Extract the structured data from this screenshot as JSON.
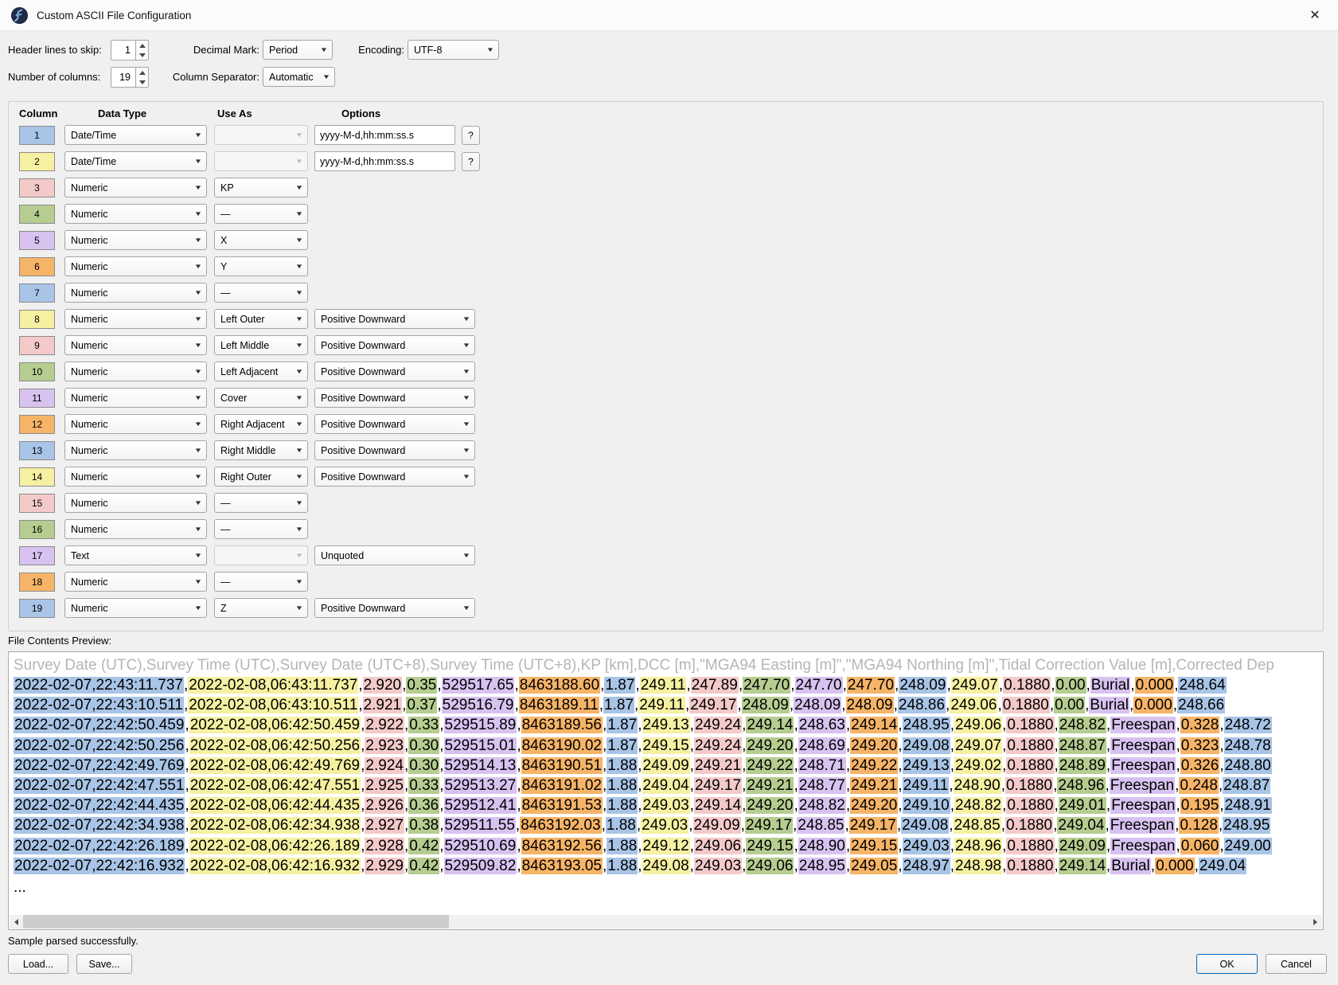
{
  "window": {
    "title": "Custom ASCII File Configuration",
    "close_glyph": "✕"
  },
  "palette": [
    "#a8c4e6",
    "#f6f0a2",
    "#f3cac9",
    "#b5cd90",
    "#d8c2f0",
    "#f6b468"
  ],
  "settings": {
    "header_lines_label": "Header lines to skip:",
    "header_lines_value": "1",
    "num_columns_label": "Number of columns:",
    "num_columns_value": "19",
    "decimal_mark_label": "Decimal Mark:",
    "decimal_mark_value": "Period",
    "column_separator_label": "Column Separator:",
    "column_separator_value": "Automatic",
    "encoding_label": "Encoding:",
    "encoding_value": "UTF-8"
  },
  "columns_table": {
    "headers": {
      "column": "Column",
      "data_type": "Data Type",
      "use_as": "Use As",
      "options": "Options"
    },
    "help_button_label": "?",
    "rows": [
      {
        "num": "1",
        "data_type": "Date/Time",
        "use_as": "",
        "use_as_disabled": true,
        "option_kind": "input",
        "option_value": "yyyy-M-d,hh:mm:ss.s"
      },
      {
        "num": "2",
        "data_type": "Date/Time",
        "use_as": "",
        "use_as_disabled": true,
        "option_kind": "input",
        "option_value": "yyyy-M-d,hh:mm:ss.s"
      },
      {
        "num": "3",
        "data_type": "Numeric",
        "use_as": "KP",
        "use_as_disabled": false,
        "option_kind": "none",
        "option_value": ""
      },
      {
        "num": "4",
        "data_type": "Numeric",
        "use_as": "—",
        "use_as_disabled": false,
        "option_kind": "none",
        "option_value": ""
      },
      {
        "num": "5",
        "data_type": "Numeric",
        "use_as": "X",
        "use_as_disabled": false,
        "option_kind": "none",
        "option_value": ""
      },
      {
        "num": "6",
        "data_type": "Numeric",
        "use_as": "Y",
        "use_as_disabled": false,
        "option_kind": "none",
        "option_value": ""
      },
      {
        "num": "7",
        "data_type": "Numeric",
        "use_as": "—",
        "use_as_disabled": false,
        "option_kind": "none",
        "option_value": ""
      },
      {
        "num": "8",
        "data_type": "Numeric",
        "use_as": "Left Outer",
        "use_as_disabled": false,
        "option_kind": "select",
        "option_value": "Positive Downward"
      },
      {
        "num": "9",
        "data_type": "Numeric",
        "use_as": "Left Middle",
        "use_as_disabled": false,
        "option_kind": "select",
        "option_value": "Positive Downward"
      },
      {
        "num": "10",
        "data_type": "Numeric",
        "use_as": "Left Adjacent",
        "use_as_disabled": false,
        "option_kind": "select",
        "option_value": "Positive Downward"
      },
      {
        "num": "11",
        "data_type": "Numeric",
        "use_as": "Cover",
        "use_as_disabled": false,
        "option_kind": "select",
        "option_value": "Positive Downward"
      },
      {
        "num": "12",
        "data_type": "Numeric",
        "use_as": "Right Adjacent",
        "use_as_disabled": false,
        "option_kind": "select",
        "option_value": "Positive Downward"
      },
      {
        "num": "13",
        "data_type": "Numeric",
        "use_as": "Right Middle",
        "use_as_disabled": false,
        "option_kind": "select",
        "option_value": "Positive Downward"
      },
      {
        "num": "14",
        "data_type": "Numeric",
        "use_as": "Right Outer",
        "use_as_disabled": false,
        "option_kind": "select",
        "option_value": "Positive Downward"
      },
      {
        "num": "15",
        "data_type": "Numeric",
        "use_as": "—",
        "use_as_disabled": false,
        "option_kind": "none",
        "option_value": ""
      },
      {
        "num": "16",
        "data_type": "Numeric",
        "use_as": "—",
        "use_as_disabled": false,
        "option_kind": "none",
        "option_value": ""
      },
      {
        "num": "17",
        "data_type": "Text",
        "use_as": "",
        "use_as_disabled": true,
        "option_kind": "select",
        "option_value": "Unquoted"
      },
      {
        "num": "18",
        "data_type": "Numeric",
        "use_as": "—",
        "use_as_disabled": false,
        "option_kind": "none",
        "option_value": ""
      },
      {
        "num": "19",
        "data_type": "Numeric",
        "use_as": "Z",
        "use_as_disabled": false,
        "option_kind": "select",
        "option_value": "Positive Downward"
      }
    ]
  },
  "preview": {
    "label": "File Contents Preview:",
    "header_line": "Survey Date (UTC),Survey Time (UTC),Survey Date (UTC+8),Survey Time (UTC+8),KP [km],DCC [m],\"MGA94 Easting [m]\",\"MGA94 Northing [m]\",Tidal Correction Value [m],Corrected Dep",
    "ellipsis": "...",
    "rows": [
      [
        "2022-02-07,22:43:11.737",
        "2022-02-08,06:43:11.737",
        "2.920",
        "0.35",
        "529517.65",
        "8463188.60",
        "1.87",
        "249.11",
        "247.89",
        "247.70",
        "247.70",
        "247.70",
        "248.09",
        "249.07",
        "0.1880",
        "0.00",
        "Burial",
        "0.000",
        "248.64"
      ],
      [
        "2022-02-07,22:43:10.511",
        "2022-02-08,06:43:10.511",
        "2.921",
        "0.37",
        "529516.79",
        "8463189.11",
        "1.87",
        "249.11",
        "249.17",
        "248.09",
        "248.09",
        "248.09",
        "248.86",
        "249.06",
        "0.1880",
        "0.00",
        "Burial",
        "0.000",
        "248.66"
      ],
      [
        "2022-02-07,22:42:50.459",
        "2022-02-08,06:42:50.459",
        "2.922",
        "0.33",
        "529515.89",
        "8463189.56",
        "1.87",
        "249.13",
        "249.24",
        "249.14",
        "248.63",
        "249.14",
        "248.95",
        "249.06",
        "0.1880",
        "248.82",
        "Freespan",
        "0.328",
        "248.72"
      ],
      [
        "2022-02-07,22:42:50.256",
        "2022-02-08,06:42:50.256",
        "2.923",
        "0.30",
        "529515.01",
        "8463190.02",
        "1.87",
        "249.15",
        "249.24",
        "249.20",
        "248.69",
        "249.20",
        "249.08",
        "249.07",
        "0.1880",
        "248.87",
        "Freespan",
        "0.323",
        "248.78"
      ],
      [
        "2022-02-07,22:42:49.769",
        "2022-02-08,06:42:49.769",
        "2.924",
        "0.30",
        "529514.13",
        "8463190.51",
        "1.88",
        "249.09",
        "249.21",
        "249.22",
        "248.71",
        "249.22",
        "249.13",
        "249.02",
        "0.1880",
        "248.89",
        "Freespan",
        "0.326",
        "248.80"
      ],
      [
        "2022-02-07,22:42:47.551",
        "2022-02-08,06:42:47.551",
        "2.925",
        "0.33",
        "529513.27",
        "8463191.02",
        "1.88",
        "249.04",
        "249.17",
        "249.21",
        "248.77",
        "249.21",
        "249.11",
        "248.90",
        "0.1880",
        "248.96",
        "Freespan",
        "0.248",
        "248.87"
      ],
      [
        "2022-02-07,22:42:44.435",
        "2022-02-08,06:42:44.435",
        "2.926",
        "0.36",
        "529512.41",
        "8463191.53",
        "1.88",
        "249.03",
        "249.14",
        "249.20",
        "248.82",
        "249.20",
        "249.10",
        "248.82",
        "0.1880",
        "249.01",
        "Freespan",
        "0.195",
        "248.91"
      ],
      [
        "2022-02-07,22:42:34.938",
        "2022-02-08,06:42:34.938",
        "2.927",
        "0.38",
        "529511.55",
        "8463192.03",
        "1.88",
        "249.03",
        "249.09",
        "249.17",
        "248.85",
        "249.17",
        "249.08",
        "248.85",
        "0.1880",
        "249.04",
        "Freespan",
        "0.128",
        "248.95"
      ],
      [
        "2022-02-07,22:42:26.189",
        "2022-02-08,06:42:26.189",
        "2.928",
        "0.42",
        "529510.69",
        "8463192.56",
        "1.88",
        "249.12",
        "249.06",
        "249.15",
        "248.90",
        "249.15",
        "249.03",
        "248.96",
        "0.1880",
        "249.09",
        "Freespan",
        "0.060",
        "249.00"
      ],
      [
        "2022-02-07,22:42:16.932",
        "2022-02-08,06:42:16.932",
        "2.929",
        "0.42",
        "529509.82",
        "8463193.05",
        "1.88",
        "249.08",
        "249.03",
        "249.06",
        "248.95",
        "249.05",
        "248.97",
        "248.98",
        "0.1880",
        "249.14",
        "Burial",
        "0.000",
        "249.04"
      ]
    ]
  },
  "status": "Sample parsed successfully.",
  "buttons": {
    "load": "Load...",
    "save": "Save...",
    "ok": "OK",
    "cancel": "Cancel"
  }
}
